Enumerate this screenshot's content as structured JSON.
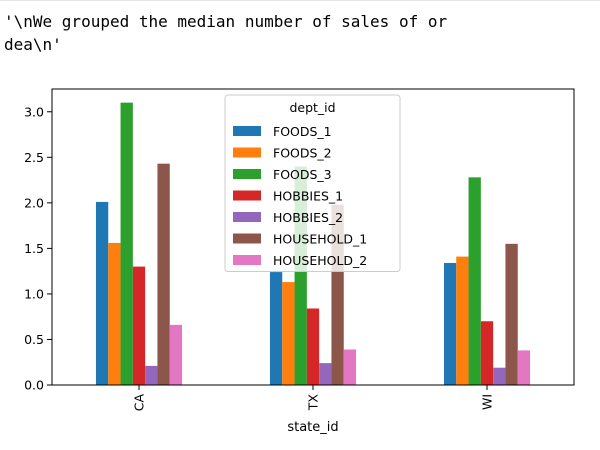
{
  "output": {
    "line1": "'\\nWe grouped the median number of sales of or",
    "line2": "dea\\n'"
  },
  "chart_data": {
    "type": "bar",
    "categories": [
      "CA",
      "TX",
      "WI"
    ],
    "xlabel": "state_id",
    "ylabel": "",
    "ylim": [
      0,
      3.25
    ],
    "yticks": [
      0.0,
      0.5,
      1.0,
      1.5,
      2.0,
      2.5,
      3.0
    ],
    "ytick_labels": [
      "0.0",
      "0.5",
      "1.0",
      "1.5",
      "2.0",
      "2.5",
      "3.0"
    ],
    "legend_title": "dept_id",
    "legend_position": "upper center",
    "series": [
      {
        "name": "FOODS_1",
        "color": "#1f77b4",
        "values": [
          2.01,
          1.24,
          1.34
        ]
      },
      {
        "name": "FOODS_2",
        "color": "#ff7f0e",
        "values": [
          1.56,
          1.13,
          1.41
        ]
      },
      {
        "name": "FOODS_3",
        "color": "#2ca02c",
        "values": [
          3.1,
          2.4,
          2.28
        ]
      },
      {
        "name": "HOBBIES_1",
        "color": "#d62728",
        "values": [
          1.3,
          0.84,
          0.7
        ]
      },
      {
        "name": "HOBBIES_2",
        "color": "#9467bd",
        "values": [
          0.21,
          0.24,
          0.19
        ]
      },
      {
        "name": "HOUSEHOLD_1",
        "color": "#8c564b",
        "values": [
          2.43,
          1.98,
          1.55
        ]
      },
      {
        "name": "HOUSEHOLD_2",
        "color": "#e377c2",
        "values": [
          0.66,
          0.39,
          0.38
        ]
      }
    ]
  }
}
